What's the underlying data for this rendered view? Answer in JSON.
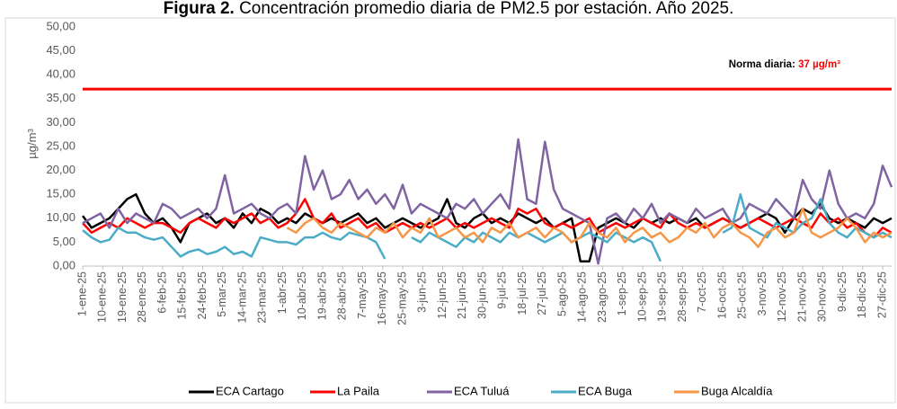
{
  "chart_data": {
    "type": "line",
    "title_label": "Figura 2.",
    "title": "Concentración promedio diaria de PM2.5 por estación. Año 2025.",
    "y_label": "µg/m³",
    "reference_line": {
      "value": 37,
      "label": "Norma diaria:",
      "value_label": "37 µg/m³",
      "color": "#ff0000"
    },
    "xlim": [
      1,
      365
    ],
    "x": [
      1,
      5,
      9,
      13,
      17,
      21,
      25,
      29,
      33,
      37,
      41,
      45,
      49,
      53,
      57,
      61,
      65,
      69,
      73,
      77,
      81,
      85,
      89,
      93,
      97,
      101,
      105,
      109,
      113,
      117,
      121,
      125,
      129,
      133,
      137,
      141,
      145,
      149,
      153,
      157,
      161,
      165,
      169,
      173,
      177,
      181,
      185,
      189,
      193,
      197,
      201,
      205,
      209,
      213,
      217,
      221,
      225,
      229,
      233,
      237,
      241,
      245,
      249,
      253,
      257,
      261,
      265,
      269,
      273,
      277,
      281,
      285,
      289,
      293,
      297,
      301,
      305,
      309,
      313,
      317,
      321,
      325,
      329,
      333,
      337,
      341,
      345,
      349,
      353,
      357,
      361,
      365
    ],
    "xticks": [
      {
        "value": 1,
        "label": "1-ene-25"
      },
      {
        "value": 10,
        "label": "10-ene-25"
      },
      {
        "value": 19,
        "label": "19-ene-25"
      },
      {
        "value": 28,
        "label": "28-ene-25"
      },
      {
        "value": 37,
        "label": "6-feb-25"
      },
      {
        "value": 46,
        "label": "15-feb-25"
      },
      {
        "value": 55,
        "label": "24-feb-25"
      },
      {
        "value": 64,
        "label": "5-mar-25"
      },
      {
        "value": 73,
        "label": "14-mar-25"
      },
      {
        "value": 82,
        "label": "23-mar-25"
      },
      {
        "value": 91,
        "label": "1-abr-25"
      },
      {
        "value": 100,
        "label": "10-abr-25"
      },
      {
        "value": 109,
        "label": "19-abr-25"
      },
      {
        "value": 118,
        "label": "28-abr-25"
      },
      {
        "value": 127,
        "label": "7-may-25"
      },
      {
        "value": 136,
        "label": "16-may-25"
      },
      {
        "value": 145,
        "label": "25-may-25"
      },
      {
        "value": 154,
        "label": "3-jun-25"
      },
      {
        "value": 163,
        "label": "12-jun-25"
      },
      {
        "value": 172,
        "label": "21-jun-25"
      },
      {
        "value": 181,
        "label": "30-jun-25"
      },
      {
        "value": 190,
        "label": "9-jul-25"
      },
      {
        "value": 199,
        "label": "18-jul-25"
      },
      {
        "value": 208,
        "label": "27-jul-25"
      },
      {
        "value": 217,
        "label": "5-ago-25"
      },
      {
        "value": 226,
        "label": "14-ago-25"
      },
      {
        "value": 235,
        "label": "23-ago-25"
      },
      {
        "value": 244,
        "label": "1-sep-25"
      },
      {
        "value": 253,
        "label": "10-sep-25"
      },
      {
        "value": 262,
        "label": "19-sep-25"
      },
      {
        "value": 271,
        "label": "28-sep-25"
      },
      {
        "value": 280,
        "label": "7-oct-25"
      },
      {
        "value": 289,
        "label": "16-oct-25"
      },
      {
        "value": 298,
        "label": "25-oct-25"
      },
      {
        "value": 307,
        "label": "3-nov-25"
      },
      {
        "value": 316,
        "label": "12-nov-25"
      },
      {
        "value": 325,
        "label": "21-nov-25"
      },
      {
        "value": 334,
        "label": "30-nov-25"
      },
      {
        "value": 343,
        "label": "9-dic-25"
      },
      {
        "value": 352,
        "label": "18-dic-25"
      },
      {
        "value": 361,
        "label": "27-dic-25"
      }
    ],
    "ylim": [
      0,
      50
    ],
    "yticks": [
      {
        "value": 0,
        "label": "0,00"
      },
      {
        "value": 5,
        "label": "5,00"
      },
      {
        "value": 10,
        "label": "10,00"
      },
      {
        "value": 15,
        "label": "15,00"
      },
      {
        "value": 20,
        "label": "20,00"
      },
      {
        "value": 25,
        "label": "25,00"
      },
      {
        "value": 30,
        "label": "30,00"
      },
      {
        "value": 35,
        "label": "35,00"
      },
      {
        "value": 40,
        "label": "40,00"
      },
      {
        "value": 45,
        "label": "45,00"
      },
      {
        "value": 50,
        "label": "50,00"
      }
    ],
    "grid": false,
    "series": [
      {
        "name": "ECA Cartago",
        "color": "#000000",
        "values": [
          10.5,
          8,
          9,
          10,
          12,
          14,
          15,
          11,
          9,
          10,
          8,
          5,
          9,
          10,
          11,
          9,
          10,
          8,
          11,
          9,
          12,
          11,
          9,
          10,
          9,
          11,
          10,
          9,
          10,
          9,
          10,
          11,
          9,
          10,
          8,
          9,
          10,
          9,
          8,
          9,
          10,
          14,
          9,
          8,
          10,
          11,
          9,
          10,
          9,
          11,
          10,
          9,
          10,
          8,
          9,
          10,
          1,
          1,
          8,
          9,
          10,
          9,
          8,
          10,
          9,
          10,
          9,
          10,
          9,
          10,
          8,
          9,
          10,
          9,
          8,
          9,
          10,
          11,
          10,
          7,
          10,
          12,
          11,
          13,
          10,
          9,
          10,
          9,
          8,
          10,
          9,
          10
        ]
      },
      {
        "name": "La Paila",
        "color": "#ff0000",
        "values": [
          9,
          7,
          8,
          9,
          8,
          10,
          9,
          8,
          9,
          9,
          8,
          7,
          9,
          10,
          9,
          8,
          10,
          9,
          10,
          11,
          9,
          10,
          8,
          9,
          11,
          14,
          10,
          9,
          11,
          8,
          9,
          10,
          8,
          9,
          7,
          8,
          9,
          8,
          9,
          8,
          9,
          10,
          8,
          9,
          8,
          9,
          10,
          9,
          8,
          12,
          11,
          12,
          9,
          8,
          9,
          8,
          9,
          10,
          7,
          8,
          9,
          8,
          9,
          10,
          9,
          8,
          11,
          9,
          8,
          9,
          8,
          9,
          10,
          9,
          8,
          9,
          10,
          9,
          8,
          9,
          10,
          9,
          8,
          11,
          9,
          10,
          8,
          9,
          7,
          6,
          8,
          7
        ]
      },
      {
        "name": "ECA Tuluá",
        "color": "#8064a2",
        "values": [
          9,
          10,
          11,
          8,
          12,
          9,
          11,
          10,
          9,
          13,
          12,
          10,
          11,
          12,
          10,
          12,
          19,
          11,
          12,
          13,
          11,
          10,
          12,
          13,
          11,
          23,
          16,
          20,
          14,
          15,
          18,
          14,
          16,
          13,
          15,
          12,
          17,
          11,
          13,
          12,
          11,
          10,
          13,
          12,
          14,
          11,
          13,
          15,
          12,
          26.5,
          14,
          13,
          26,
          16,
          12,
          11,
          10,
          9,
          0.5,
          10,
          11,
          9,
          12,
          10,
          13,
          9,
          11,
          10,
          9,
          12,
          10,
          11,
          12,
          9,
          10,
          13,
          12,
          11,
          14,
          12,
          10,
          18,
          14,
          12,
          20,
          13,
          10,
          11,
          10,
          13,
          21,
          16.5
        ]
      },
      {
        "name": "ECA Buga",
        "color": "#4bacc6",
        "values": [
          7.5,
          6,
          5,
          5.5,
          8,
          7,
          7,
          6,
          5.5,
          6,
          4,
          2,
          3,
          3.5,
          2.5,
          3,
          4,
          2.5,
          3,
          2,
          6,
          5.5,
          5,
          5,
          4.5,
          6,
          6,
          7,
          6,
          5.5,
          7,
          6.5,
          6,
          5,
          1.5,
          null,
          null,
          6,
          5,
          7,
          6,
          5,
          4,
          6,
          5,
          7,
          6,
          5,
          7,
          6,
          7,
          6,
          5,
          6,
          7,
          5,
          6,
          7,
          6,
          5,
          7,
          6,
          5,
          6,
          5,
          1,
          null,
          null,
          null,
          null,
          null,
          null,
          7,
          8,
          15,
          8,
          7,
          6,
          9,
          8,
          7,
          9,
          10,
          14,
          9,
          7,
          6,
          8,
          7,
          6,
          7,
          6
        ]
      },
      {
        "name": "Buga Alcaldía",
        "color": "#f79646",
        "values": [
          null,
          null,
          null,
          null,
          null,
          null,
          null,
          null,
          null,
          null,
          null,
          null,
          null,
          null,
          null,
          null,
          null,
          null,
          null,
          null,
          null,
          null,
          null,
          8,
          7,
          9,
          10,
          8,
          7,
          9,
          8,
          7,
          6,
          8,
          7,
          9,
          6,
          8,
          7,
          10,
          6,
          7,
          8,
          6,
          7,
          5,
          8,
          7,
          9,
          6,
          7,
          8,
          6,
          8,
          7,
          5,
          6,
          9,
          7,
          6,
          8,
          5,
          7,
          8,
          6,
          7,
          5,
          6,
          8,
          7,
          9,
          6,
          8,
          9,
          7,
          6,
          4,
          7,
          8,
          6,
          7,
          12,
          7,
          6,
          7,
          8,
          10,
          8,
          5,
          7,
          6,
          7
        ]
      }
    ]
  }
}
